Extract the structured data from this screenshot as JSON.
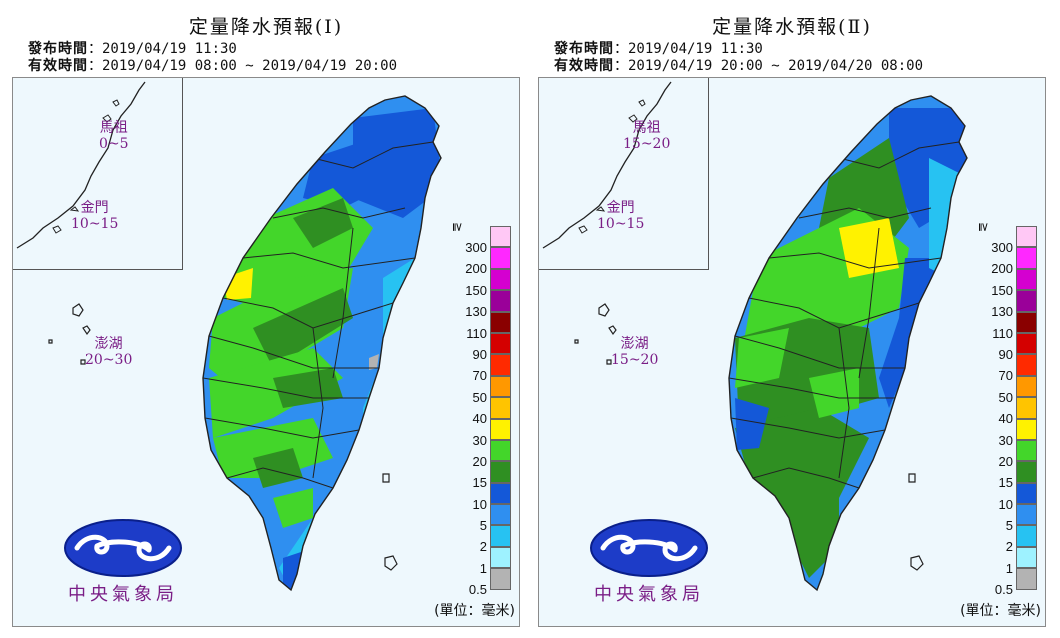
{
  "panels": [
    {
      "title": "定量降水預報(Ⅰ)",
      "issued_label": "發布時間",
      "issued_value": "：2019/04/19 11:30",
      "valid_label": "有效時間",
      "valid_value": "：2019/04/19 08:00 ~ 2019/04/19 20:00",
      "places": {
        "matsu": {
          "name": "馬祖",
          "range": "0~5"
        },
        "kinmen": {
          "name": "金門",
          "range": "10~15"
        },
        "penghu": {
          "name": "澎湖",
          "range": "20~30"
        }
      }
    },
    {
      "title": "定量降水預報(Ⅱ)",
      "issued_label": "發布時間",
      "issued_value": "：2019/04/19 11:30",
      "valid_label": "有效時間",
      "valid_value": "：2019/04/19 20:00 ~ 2019/04/20 08:00",
      "places": {
        "matsu": {
          "name": "馬祖",
          "range": "15~20"
        },
        "kinmen": {
          "name": "金門",
          "range": "10~15"
        },
        "penghu": {
          "name": "澎湖",
          "range": "15~20"
        }
      }
    }
  ],
  "legend": {
    "gte_symbol": "≧",
    "levels": [
      {
        "label": "300",
        "color": "#ffc8f5"
      },
      {
        "label": "200",
        "color": "#ff28ff"
      },
      {
        "label": "150",
        "color": "#d400d0"
      },
      {
        "label": "130",
        "color": "#9a0099"
      },
      {
        "label": "110",
        "color": "#8a0000"
      },
      {
        "label": "90",
        "color": "#d40000"
      },
      {
        "label": "70",
        "color": "#ff2a00"
      },
      {
        "label": "50",
        "color": "#ff9800"
      },
      {
        "label": "40",
        "color": "#ffc400"
      },
      {
        "label": "30",
        "color": "#fff200"
      },
      {
        "label": "20",
        "color": "#43d62a"
      },
      {
        "label": "15",
        "color": "#2f8f22"
      },
      {
        "label": "10",
        "color": "#1458d8"
      },
      {
        "label": "5",
        "color": "#2f8ff0"
      },
      {
        "label": "2",
        "color": "#27c2f2"
      },
      {
        "label": "1",
        "color": "#9ef2ff"
      },
      {
        "label": "0.5",
        "color": "#b3b3b3"
      }
    ],
    "unit": "(單位：毫米)"
  },
  "agency_name": "中央氣象局",
  "map_colors": {
    "ocean": "#eef8fd",
    "coast": "#222222"
  }
}
